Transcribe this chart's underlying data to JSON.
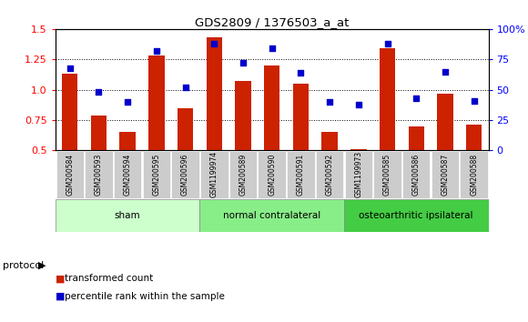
{
  "title": "GDS2809 / 1376503_a_at",
  "samples": [
    "GSM200584",
    "GSM200593",
    "GSM200594",
    "GSM200595",
    "GSM200596",
    "GSM1199974",
    "GSM200589",
    "GSM200590",
    "GSM200591",
    "GSM200592",
    "GSM1199973",
    "GSM200585",
    "GSM200586",
    "GSM200587",
    "GSM200588"
  ],
  "red_values": [
    1.13,
    0.79,
    0.65,
    1.28,
    0.85,
    1.43,
    1.07,
    1.2,
    1.05,
    0.65,
    0.51,
    1.34,
    0.7,
    0.97,
    0.71
  ],
  "blue_pct": [
    68,
    48,
    40,
    82,
    52,
    88,
    72,
    84,
    64,
    40,
    38,
    88,
    43,
    65,
    41
  ],
  "ylim_left": [
    0.5,
    1.5
  ],
  "ylim_right": [
    0,
    100
  ],
  "yticks_left": [
    0.5,
    0.75,
    1.0,
    1.25,
    1.5
  ],
  "yticks_right": [
    0,
    25,
    50,
    75,
    100
  ],
  "ytick_labels_right": [
    "0",
    "25",
    "50",
    "75",
    "100%"
  ],
  "groups": [
    {
      "label": "sham",
      "start": 0,
      "end": 5,
      "color": "#ccffcc"
    },
    {
      "label": "normal contralateral",
      "start": 5,
      "end": 10,
      "color": "#88ee88"
    },
    {
      "label": "osteoarthritic ipsilateral",
      "start": 10,
      "end": 15,
      "color": "#44cc44"
    }
  ],
  "protocol_label": "protocol",
  "legend_red": "transformed count",
  "legend_blue": "percentile rank within the sample",
  "bar_color": "#cc2200",
  "dot_color": "#0000cc",
  "col_bg": "#cccccc",
  "plot_bg": "#ffffff",
  "grid_color": "#000000"
}
